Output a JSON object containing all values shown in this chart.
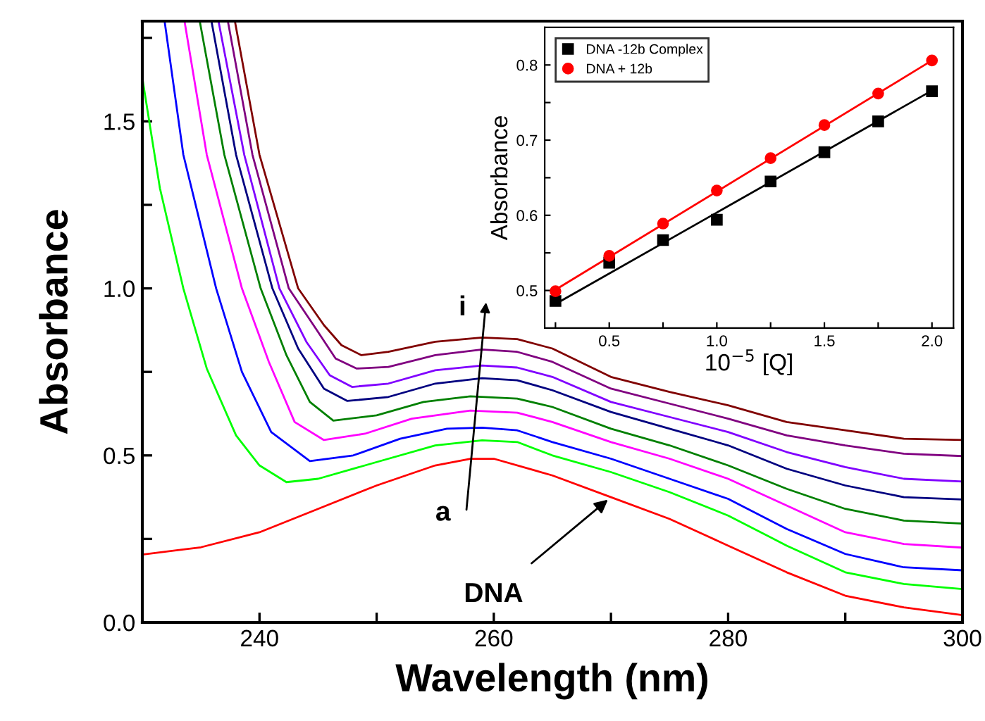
{
  "chart_data": [
    {
      "type": "line",
      "xlabel": "Wavelength (nm)",
      "ylabel": "Absorbance",
      "xlim": [
        230,
        300
      ],
      "ylim": [
        0,
        1.8
      ],
      "xticks": [
        240,
        {
          "value": 250,
          "label": null
        },
        260,
        {
          "value": 270,
          "label": null
        },
        280,
        {
          "value": 290,
          "label": null
        },
        300
      ],
      "yticks": [
        {
          "value": 0,
          "label": "0.0"
        },
        {
          "value": 0.25,
          "label": null
        },
        {
          "value": 0.5,
          "label": "0.5"
        },
        {
          "value": 0.75,
          "label": null
        },
        {
          "value": 1,
          "label": "1.0"
        },
        {
          "value": 1.25,
          "label": null
        },
        {
          "value": 1.5,
          "label": "1.5"
        },
        {
          "value": 1.75,
          "label": null
        }
      ],
      "grid": false,
      "legend": false,
      "marker": "none",
      "line_style": "solid",
      "annotations": [
        "a",
        "i",
        {
          "text": "DNA",
          "x": 270,
          "y": 0.375
        }
      ],
      "series": [
        {
          "color": "#ff0000",
          "x": [
            230,
            235,
            240,
            245,
            250,
            255,
            258,
            260,
            265,
            270,
            275,
            280,
            285,
            290,
            295,
            300
          ],
          "values": [
            0.203,
            0.225,
            0.27,
            0.34,
            0.41,
            0.47,
            0.49,
            0.49,
            0.44,
            0.375,
            0.31,
            0.23,
            0.15,
            0.08,
            0.045,
            0.022
          ]
        },
        {
          "color": "#00ff00",
          "x": [
            230,
            231.5,
            233.5,
            235.5,
            238,
            240,
            242.3,
            245,
            250,
            255,
            259,
            262,
            265,
            270,
            275,
            280,
            285,
            290,
            295,
            300
          ],
          "values": [
            1.63,
            1.3,
            1.0,
            0.76,
            0.56,
            0.47,
            0.42,
            0.43,
            0.48,
            0.53,
            0.545,
            0.54,
            0.5,
            0.45,
            0.39,
            0.32,
            0.23,
            0.15,
            0.115,
            0.1
          ]
        },
        {
          "color": "#0000ff",
          "x": [
            231.9,
            233.5,
            236.3,
            238.5,
            241,
            244.3,
            248,
            252,
            256,
            259,
            262,
            265,
            270,
            275,
            280,
            285,
            290,
            295,
            300
          ],
          "values": [
            1.8,
            1.4,
            1.0,
            0.75,
            0.57,
            0.483,
            0.5,
            0.55,
            0.58,
            0.583,
            0.575,
            0.54,
            0.49,
            0.43,
            0.37,
            0.28,
            0.205,
            0.165,
            0.156
          ]
        },
        {
          "color": "#ff00ff",
          "x": [
            233.6,
            235.5,
            238.5,
            240.8,
            243,
            245.5,
            249,
            253,
            258,
            262,
            265,
            270,
            275,
            280,
            285,
            290,
            295,
            300
          ],
          "values": [
            1.8,
            1.4,
            1.0,
            0.78,
            0.6,
            0.546,
            0.565,
            0.61,
            0.634,
            0.628,
            0.6,
            0.54,
            0.49,
            0.43,
            0.35,
            0.27,
            0.235,
            0.224
          ]
        },
        {
          "color": "#008000",
          "x": [
            234.9,
            237,
            240.1,
            242.3,
            244.3,
            246.3,
            250,
            254,
            258,
            262,
            265,
            270,
            275,
            280,
            285,
            290,
            295,
            300
          ],
          "values": [
            1.8,
            1.4,
            1.0,
            0.8,
            0.66,
            0.604,
            0.62,
            0.66,
            0.677,
            0.67,
            0.645,
            0.58,
            0.53,
            0.47,
            0.4,
            0.34,
            0.305,
            0.296
          ]
        },
        {
          "color": "#000080",
          "x": [
            235.9,
            238,
            241.1,
            243.3,
            245.5,
            247.5,
            251,
            255,
            259,
            262,
            265,
            270,
            275,
            280,
            285,
            290,
            295,
            300
          ],
          "values": [
            1.8,
            1.4,
            1.0,
            0.82,
            0.7,
            0.663,
            0.675,
            0.715,
            0.731,
            0.725,
            0.695,
            0.63,
            0.58,
            0.53,
            0.46,
            0.41,
            0.375,
            0.368
          ]
        },
        {
          "color": "#8000ff",
          "x": [
            236.5,
            238.7,
            241.7,
            244,
            246,
            247.9,
            251,
            255,
            259,
            262,
            265,
            270,
            275,
            280,
            285,
            290,
            295,
            300
          ],
          "values": [
            1.8,
            1.4,
            1.0,
            0.84,
            0.74,
            0.705,
            0.715,
            0.755,
            0.769,
            0.763,
            0.735,
            0.66,
            0.615,
            0.57,
            0.51,
            0.465,
            0.43,
            0.422
          ]
        },
        {
          "color": "#800080",
          "x": [
            237.3,
            239.4,
            242.5,
            244.8,
            246.5,
            248.3,
            251,
            255,
            259,
            262,
            265,
            270,
            275,
            280,
            285,
            290,
            295,
            300
          ],
          "values": [
            1.8,
            1.4,
            1.0,
            0.88,
            0.79,
            0.76,
            0.765,
            0.8,
            0.817,
            0.81,
            0.78,
            0.7,
            0.655,
            0.61,
            0.56,
            0.53,
            0.505,
            0.498
          ]
        },
        {
          "color": "#800000",
          "x": [
            237.9,
            240,
            243.3,
            245.5,
            247,
            248.7,
            251,
            255,
            259,
            262,
            265,
            270,
            275,
            280,
            285,
            290,
            295,
            300
          ],
          "values": [
            1.8,
            1.4,
            1.0,
            0.89,
            0.83,
            0.8,
            0.81,
            0.84,
            0.853,
            0.848,
            0.82,
            0.735,
            0.69,
            0.65,
            0.6,
            0.575,
            0.55,
            0.546
          ]
        }
      ]
    },
    {
      "type": "scatter",
      "xlabel": "10$^{−5}$ [Q]",
      "ylabel": "Absorbance",
      "xlim": [
        0.2,
        2.1
      ],
      "ylim": [
        0.45,
        0.85
      ],
      "xticks": [
        {
          "value": 0.25,
          "label": null
        },
        0.5,
        {
          "value": 0.75,
          "label": null
        },
        {
          "value": 1,
          "label": "1.0"
        },
        {
          "value": 1.25,
          "label": null
        },
        1.5,
        {
          "value": 1.75,
          "label": null
        },
        {
          "value": 2,
          "label": "2.0"
        }
      ],
      "yticks": [
        0.5,
        {
          "value": 0.55,
          "label": null
        },
        0.6,
        {
          "value": 0.65,
          "label": null
        },
        0.7,
        {
          "value": 0.75,
          "label": null
        },
        0.8
      ],
      "grid": false,
      "legend": "top left",
      "series": [
        {
          "name": "DNA -12b Complex",
          "color": "#000000",
          "marker": "square",
          "x": [
            0.25,
            0.5,
            0.75,
            1.0,
            1.25,
            1.5,
            1.75,
            2.0
          ],
          "values": [
            0.486,
            0.537,
            0.567,
            0.594,
            0.645,
            0.684,
            0.725,
            0.765
          ]
        },
        {
          "name": "DNA + 12b",
          "color": "#ff0000",
          "marker": "circle",
          "x": [
            0.25,
            0.5,
            0.75,
            1.0,
            1.25,
            1.5,
            1.75,
            2.0
          ],
          "values": [
            0.499,
            0.546,
            0.589,
            0.633,
            0.676,
            0.72,
            0.762,
            0.806
          ]
        },
        {
          "type": "line",
          "color": "#000000",
          "marker": "none",
          "line_style": "solid",
          "x": [
            0.25,
            2.0
          ],
          "values": [
            0.482,
            0.766
          ]
        },
        {
          "type": "line",
          "color": "#ff0000",
          "marker": "none",
          "line_style": "solid",
          "x": [
            0.25,
            2.0
          ],
          "values": [
            0.501,
            0.806
          ]
        }
      ]
    }
  ]
}
